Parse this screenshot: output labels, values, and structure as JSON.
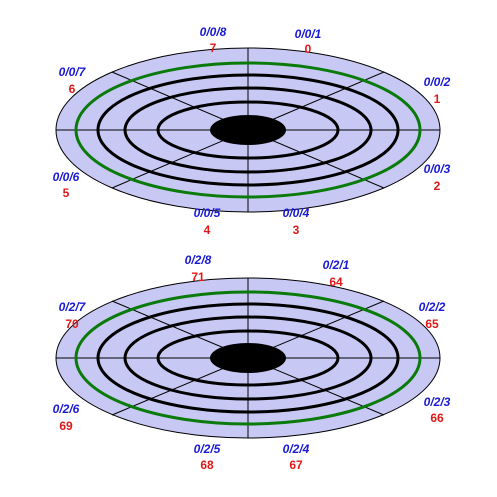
{
  "colors": {
    "platter_fill": "#c8c8f4",
    "track": "#000000",
    "outer_track": "#0a7a0a",
    "spokes": "#000000",
    "hub": "#000000",
    "name_text": "#1a1ad6",
    "number_text": "#e01818"
  },
  "disks": [
    {
      "sectors": [
        {
          "name": "0/0/1",
          "number": "0"
        },
        {
          "name": "0/0/2",
          "number": "1"
        },
        {
          "name": "0/0/3",
          "number": "2"
        },
        {
          "name": "0/0/4",
          "number": "3"
        },
        {
          "name": "0/0/5",
          "number": "4"
        },
        {
          "name": "0/0/6",
          "number": "5"
        },
        {
          "name": "0/0/7",
          "number": "6"
        },
        {
          "name": "0/0/8",
          "number": "7"
        }
      ]
    },
    {
      "sectors": [
        {
          "name": "0/2/1",
          "number": "64"
        },
        {
          "name": "0/2/2",
          "number": "65"
        },
        {
          "name": "0/2/3",
          "number": "66"
        },
        {
          "name": "0/2/4",
          "number": "67"
        },
        {
          "name": "0/2/5",
          "number": "68"
        },
        {
          "name": "0/2/6",
          "number": "69"
        },
        {
          "name": "0/2/7",
          "number": "70"
        },
        {
          "name": "0/2/8",
          "number": "71"
        }
      ]
    }
  ]
}
